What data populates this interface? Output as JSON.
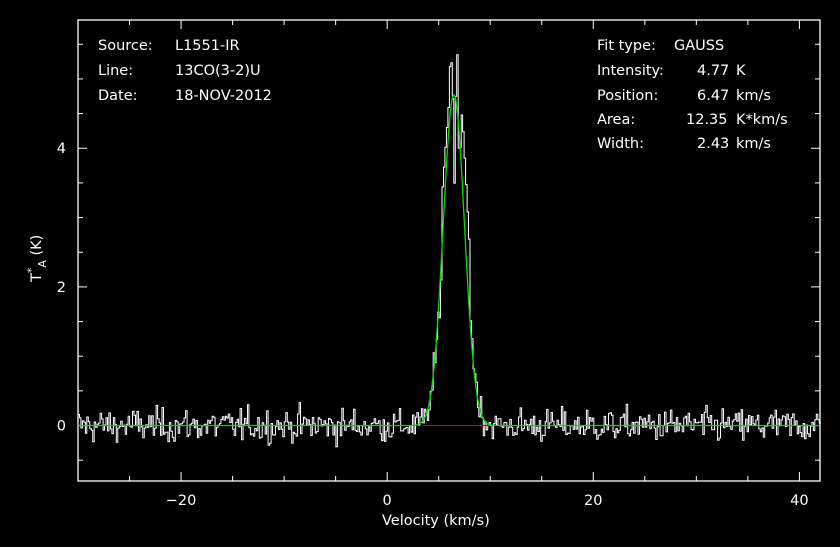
{
  "header_left": [
    {
      "key": "Source:",
      "value": "L1551-IR"
    },
    {
      "key": "Line:",
      "value": "13CO(3-2)U"
    },
    {
      "key": "Date:",
      "value": "18-NOV-2012"
    }
  ],
  "header_right": {
    "fit_type_label": "Fit type:",
    "fit_type": "GAUSS",
    "rows": [
      {
        "key": "Intensity:",
        "value": "4.77",
        "unit": "K"
      },
      {
        "key": "Position:",
        "value": "6.47",
        "unit": "km/s"
      },
      {
        "key": "Area:",
        "value": "12.35",
        "unit": "K*km/s"
      },
      {
        "key": "Width:",
        "value": "2.43",
        "unit": "km/s"
      }
    ]
  },
  "colors": {
    "background": "#000000",
    "axes": "#ffffff",
    "spectrum": "#ffffff",
    "fit": "#00dd00",
    "baseline": "#e00000"
  },
  "chart_data": {
    "type": "line",
    "xlabel": "Velocity (km/s)",
    "ylabel": "T*A (K)",
    "xlim": [
      -30,
      42
    ],
    "ylim": [
      -0.8,
      5.85
    ],
    "xticks": [
      -20,
      0,
      20,
      40
    ],
    "xtick_labels": [
      "−20",
      "0",
      "20",
      "40"
    ],
    "yticks": [
      0,
      2,
      4
    ],
    "ytick_labels": [
      "0",
      "2",
      "4"
    ],
    "grid": false,
    "series": [
      {
        "kind": "spectrum",
        "noise_rms": 0.12,
        "channel_width_kms": 0.143,
        "peak_values": [
          {
            "x": 5.3,
            "y": 3.4
          },
          {
            "x": 5.6,
            "y": 4.0
          },
          {
            "x": 5.9,
            "y": 4.6
          },
          {
            "x": 6.1,
            "y": 5.45
          },
          {
            "x": 6.3,
            "y": 4.9
          },
          {
            "x": 6.5,
            "y": 3.2
          },
          {
            "x": 6.65,
            "y": 5.35
          },
          {
            "x": 6.8,
            "y": 5.35
          },
          {
            "x": 6.95,
            "y": 3.2
          },
          {
            "x": 7.1,
            "y": 4.6
          },
          {
            "x": 7.3,
            "y": 4.3
          },
          {
            "x": 7.6,
            "y": 3.5
          },
          {
            "x": 8.0,
            "y": 2.4
          }
        ]
      },
      {
        "kind": "fit",
        "function": "gaussian",
        "amplitude": 4.77,
        "center": 6.47,
        "fwhm": 2.43
      },
      {
        "kind": "baseline",
        "x": [
          3.5,
          9.9
        ],
        "y": [
          0,
          0
        ]
      }
    ]
  }
}
